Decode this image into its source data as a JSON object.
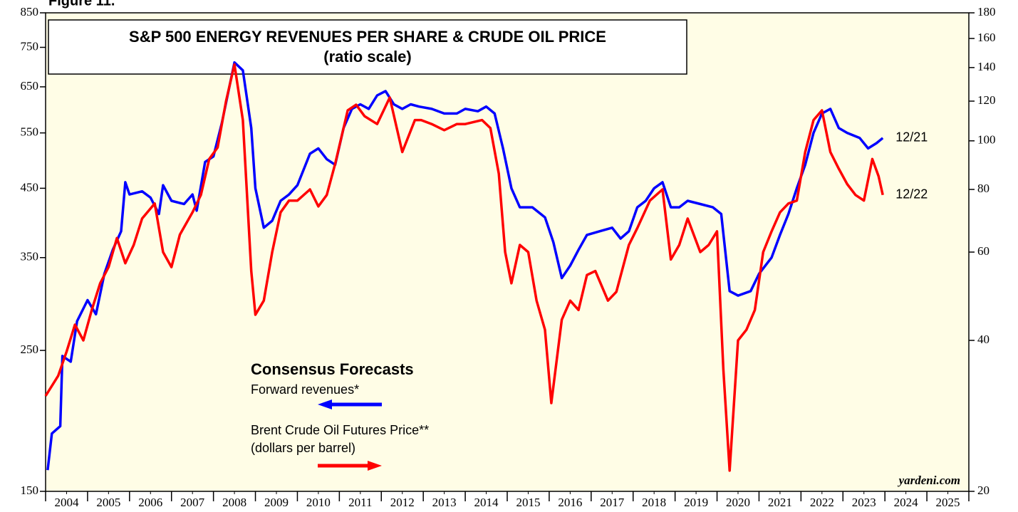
{
  "chart_data": {
    "type": "line",
    "figure_label": "Figure 11.",
    "title": "S&P 500 ENERGY REVENUES PER SHARE & CRUDE OIL PRICE",
    "subtitle": "(ratio scale)",
    "legend_title": "Consensus Forecasts",
    "note_oil_units": "(dollars per barrel)",
    "source": "yardeni.com",
    "log_scale": true,
    "background": "#fffde6",
    "xlim": [
      2004,
      2026
    ],
    "xticks": [
      {
        "value": 2004.5,
        "label": "2004"
      },
      {
        "value": 2005.5,
        "label": "2005"
      },
      {
        "value": 2006.5,
        "label": "2006"
      },
      {
        "value": 2007.5,
        "label": "2007"
      },
      {
        "value": 2008.5,
        "label": "2008"
      },
      {
        "value": 2009.5,
        "label": "2009"
      },
      {
        "value": 2010.5,
        "label": "2010"
      },
      {
        "value": 2011.5,
        "label": "2011"
      },
      {
        "value": 2012.5,
        "label": "2012"
      },
      {
        "value": 2013.5,
        "label": "2013"
      },
      {
        "value": 2014.5,
        "label": "2014"
      },
      {
        "value": 2015.5,
        "label": "2015"
      },
      {
        "value": 2016.5,
        "label": "2016"
      },
      {
        "value": 2017.5,
        "label": "2017"
      },
      {
        "value": 2018.5,
        "label": "2018"
      },
      {
        "value": 2019.5,
        "label": "2019"
      },
      {
        "value": 2020.5,
        "label": "2020"
      },
      {
        "value": 2021.5,
        "label": "2021"
      },
      {
        "value": 2022.5,
        "label": "2022"
      },
      {
        "value": 2023.5,
        "label": "2023"
      },
      {
        "value": 2024.5,
        "label": "2024"
      },
      {
        "value": 2025.5,
        "label": "2025"
      }
    ],
    "ylim": [
      150,
      850
    ],
    "yticks": [
      150,
      250,
      350,
      450,
      550,
      650,
      750,
      850
    ],
    "y2lim": [
      20,
      180
    ],
    "y2ticks": [
      20,
      40,
      60,
      80,
      100,
      120,
      140,
      160,
      180
    ],
    "series": [
      {
        "name": "Forward revenues*",
        "color": "#0000ff",
        "axis": "y",
        "end_label": "12/21",
        "x": [
          2004.05,
          2004.15,
          2004.35,
          2004.4,
          2004.6,
          2004.75,
          2005.0,
          2005.2,
          2005.4,
          2005.6,
          2005.8,
          2005.9,
          2006.0,
          2006.3,
          2006.5,
          2006.7,
          2006.8,
          2007.0,
          2007.3,
          2007.5,
          2007.6,
          2007.8,
          2008.0,
          2008.2,
          2008.4,
          2008.5,
          2008.7,
          2008.9,
          2009.0,
          2009.2,
          2009.4,
          2009.6,
          2009.8,
          2010.0,
          2010.3,
          2010.5,
          2010.7,
          2010.9,
          2011.1,
          2011.3,
          2011.5,
          2011.7,
          2011.9,
          2012.1,
          2012.3,
          2012.5,
          2012.7,
          2012.9,
          2013.2,
          2013.5,
          2013.8,
          2014.0,
          2014.3,
          2014.5,
          2014.7,
          2014.9,
          2015.1,
          2015.3,
          2015.6,
          2015.9,
          2016.1,
          2016.3,
          2016.5,
          2016.7,
          2016.9,
          2017.2,
          2017.5,
          2017.7,
          2017.9,
          2018.1,
          2018.3,
          2018.5,
          2018.7,
          2018.9,
          2019.1,
          2019.3,
          2019.6,
          2019.9,
          2020.1,
          2020.3,
          2020.5,
          2020.8,
          2021.0,
          2021.3,
          2021.5,
          2021.7,
          2021.9,
          2022.1,
          2022.3,
          2022.5,
          2022.7,
          2022.9,
          2023.1,
          2023.4,
          2023.6,
          2023.8,
          2023.95
        ],
        "values": [
          162,
          185,
          190,
          245,
          240,
          278,
          300,
          285,
          330,
          360,
          385,
          460,
          440,
          445,
          435,
          410,
          455,
          430,
          425,
          440,
          415,
          495,
          505,
          570,
          660,
          710,
          690,
          560,
          450,
          390,
          400,
          430,
          440,
          455,
          510,
          520,
          500,
          490,
          560,
          600,
          610,
          600,
          630,
          640,
          610,
          600,
          610,
          605,
          600,
          590,
          590,
          600,
          595,
          605,
          590,
          520,
          450,
          420,
          420,
          405,
          370,
          325,
          340,
          360,
          380,
          385,
          390,
          375,
          385,
          420,
          430,
          450,
          460,
          420,
          420,
          430,
          425,
          420,
          410,
          310,
          305,
          310,
          330,
          350,
          380,
          410,
          450,
          490,
          550,
          590,
          600,
          560,
          550,
          540,
          520,
          530,
          540
        ]
      },
      {
        "name": "Brent Crude Oil Futures Price**",
        "color": "#ff0000",
        "axis": "y2",
        "end_label": "12/22",
        "x": [
          2004.0,
          2004.3,
          2004.5,
          2004.7,
          2004.9,
          2005.1,
          2005.3,
          2005.5,
          2005.7,
          2005.9,
          2006.1,
          2006.3,
          2006.6,
          2006.8,
          2007.0,
          2007.2,
          2007.5,
          2007.7,
          2007.9,
          2008.1,
          2008.3,
          2008.5,
          2008.7,
          2008.9,
          2009.0,
          2009.2,
          2009.4,
          2009.6,
          2009.8,
          2010.0,
          2010.3,
          2010.5,
          2010.7,
          2010.9,
          2011.2,
          2011.4,
          2011.6,
          2011.9,
          2012.2,
          2012.5,
          2012.8,
          2012.95,
          2013.2,
          2013.5,
          2013.8,
          2014.0,
          2014.4,
          2014.6,
          2014.8,
          2014.95,
          2015.1,
          2015.3,
          2015.5,
          2015.7,
          2015.9,
          2016.05,
          2016.3,
          2016.5,
          2016.7,
          2016.9,
          2017.1,
          2017.4,
          2017.6,
          2017.9,
          2018.1,
          2018.4,
          2018.7,
          2018.9,
          2019.1,
          2019.3,
          2019.6,
          2019.8,
          2020.0,
          2020.15,
          2020.3,
          2020.5,
          2020.7,
          2020.9,
          2021.1,
          2021.3,
          2021.5,
          2021.7,
          2021.9,
          2022.1,
          2022.3,
          2022.5,
          2022.7,
          2022.9,
          2023.1,
          2023.3,
          2023.5,
          2023.7,
          2023.85,
          2023.95
        ],
        "values": [
          31,
          34,
          38,
          43,
          40,
          46,
          52,
          56,
          64,
          57,
          62,
          70,
          75,
          60,
          56,
          65,
          72,
          78,
          92,
          97,
          120,
          142,
          110,
          55,
          45,
          48,
          60,
          72,
          76,
          76,
          80,
          74,
          78,
          90,
          115,
          118,
          112,
          108,
          122,
          95,
          110,
          110,
          108,
          105,
          108,
          108,
          110,
          106,
          86,
          60,
          52,
          62,
          60,
          48,
          42,
          30,
          44,
          48,
          46,
          54,
          55,
          48,
          50,
          62,
          67,
          76,
          80,
          58,
          62,
          70,
          60,
          62,
          66,
          35,
          22,
          40,
          42,
          46,
          60,
          66,
          72,
          75,
          76,
          95,
          110,
          115,
          95,
          88,
          82,
          78,
          76,
          92,
          85,
          78
        ]
      }
    ]
  }
}
